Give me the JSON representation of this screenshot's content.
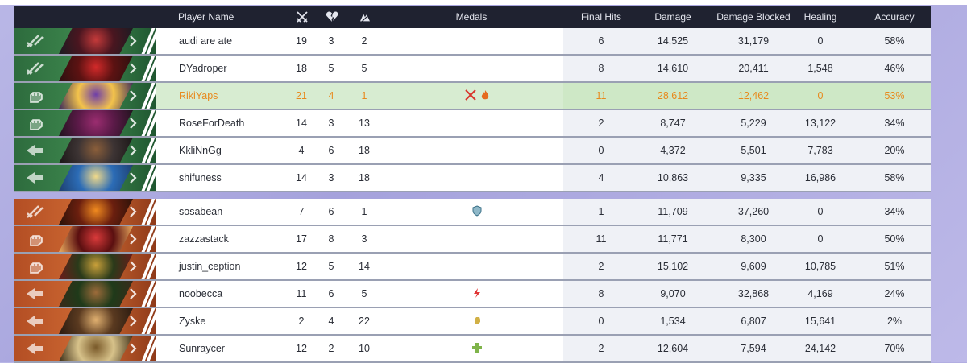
{
  "header": {
    "player_name": "Player Name",
    "kills_icon": "crossed-swords-icon",
    "deaths_icon": "broken-heart-icon",
    "assists_icon": "assist-icon",
    "medals": "Medals",
    "final_hits": "Final Hits",
    "damage": "Damage",
    "damage_blocked": "Damage Blocked",
    "healing": "Healing",
    "accuracy": "Accuracy"
  },
  "colors": {
    "ally": "#3f8a4f",
    "enemy": "#cf6a33",
    "highlight_row": "#d7ecd1",
    "highlight_text": "#e8891d",
    "header_bg": "#1f2230"
  },
  "team_ally": [
    {
      "role": "duelist-icon",
      "name": "audi are ate",
      "kills": "19",
      "deaths": "3",
      "assists": "2",
      "medals": [],
      "final_hits": "6",
      "damage": "14,525",
      "damage_blocked": "31,179",
      "healing": "0",
      "accuracy": "58%"
    },
    {
      "role": "duelist-icon",
      "name": "DYadroper",
      "kills": "18",
      "deaths": "5",
      "assists": "5",
      "medals": [],
      "final_hits": "8",
      "damage": "14,610",
      "damage_blocked": "20,411",
      "healing": "1,548",
      "accuracy": "46%"
    },
    {
      "role": "vanguard-fist-icon",
      "name": "RikiYaps",
      "kills": "21",
      "deaths": "4",
      "assists": "1",
      "medals": [
        "kill-streak-medal-icon",
        "fire-medal-icon"
      ],
      "final_hits": "11",
      "damage": "28,612",
      "damage_blocked": "12,462",
      "healing": "0",
      "accuracy": "53%",
      "highlight": true
    },
    {
      "role": "vanguard-fist-icon",
      "name": "RoseForDeath",
      "kills": "14",
      "deaths": "3",
      "assists": "13",
      "medals": [],
      "final_hits": "2",
      "damage": "8,747",
      "damage_blocked": "5,229",
      "healing": "13,122",
      "accuracy": "34%"
    },
    {
      "role": "strategist-icon",
      "name": "KkliNnGg",
      "kills": "4",
      "deaths": "6",
      "assists": "18",
      "medals": [],
      "final_hits": "0",
      "damage": "4,372",
      "damage_blocked": "5,501",
      "healing": "7,783",
      "accuracy": "20%"
    },
    {
      "role": "strategist-icon",
      "name": "shifuness",
      "kills": "14",
      "deaths": "3",
      "assists": "18",
      "medals": [],
      "final_hits": "4",
      "damage": "10,863",
      "damage_blocked": "9,335",
      "healing": "16,986",
      "accuracy": "58%"
    }
  ],
  "team_enemy": [
    {
      "role": "duelist-icon",
      "name": "sosabean",
      "kills": "7",
      "deaths": "6",
      "assists": "1",
      "medals": [
        "shield-medal-icon"
      ],
      "final_hits": "1",
      "damage": "11,709",
      "damage_blocked": "37,260",
      "healing": "0",
      "accuracy": "34%"
    },
    {
      "role": "vanguard-fist-icon",
      "name": "zazzastack",
      "kills": "17",
      "deaths": "8",
      "assists": "3",
      "medals": [],
      "final_hits": "11",
      "damage": "11,771",
      "damage_blocked": "8,300",
      "healing": "0",
      "accuracy": "50%"
    },
    {
      "role": "vanguard-fist-icon",
      "name": "justin_ception",
      "kills": "12",
      "deaths": "5",
      "assists": "14",
      "medals": [],
      "final_hits": "2",
      "damage": "15,102",
      "damage_blocked": "9,609",
      "healing": "10,785",
      "accuracy": "51%"
    },
    {
      "role": "strategist-icon",
      "name": "noobecca",
      "kills": "11",
      "deaths": "6",
      "assists": "5",
      "medals": [
        "lightning-medal-icon"
      ],
      "final_hits": "8",
      "damage": "9,070",
      "damage_blocked": "32,868",
      "healing": "4,169",
      "accuracy": "24%"
    },
    {
      "role": "strategist-icon",
      "name": "Zyske",
      "kills": "2",
      "deaths": "4",
      "assists": "22",
      "medals": [
        "fist-medal-icon"
      ],
      "final_hits": "0",
      "damage": "1,534",
      "damage_blocked": "6,807",
      "healing": "15,641",
      "accuracy": "2%"
    },
    {
      "role": "strategist-icon",
      "name": "Sunraycer",
      "kills": "12",
      "deaths": "2",
      "assists": "10",
      "medals": [
        "heal-medal-icon"
      ],
      "final_hits": "2",
      "damage": "12,604",
      "damage_blocked": "7,594",
      "healing": "24,142",
      "accuracy": "70%"
    }
  ]
}
